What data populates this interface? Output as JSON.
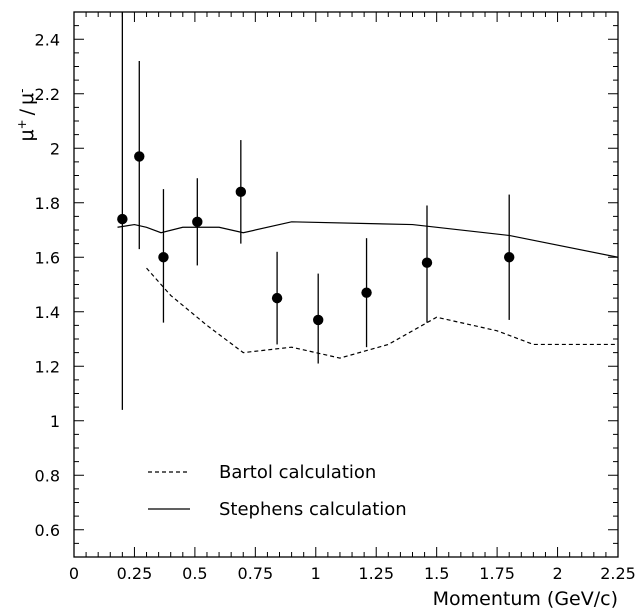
{
  "chart_data": {
    "type": "scatter",
    "title": "",
    "xlabel": "Momentum (GeV/c)",
    "ylabel_main": "μ",
    "ylabel_sup1": "+",
    "ylabel_sep": "/",
    "ylabel_sup2": "-",
    "xlim": [
      0,
      2.25
    ],
    "ylim": [
      0.5,
      2.5
    ],
    "xticks": [
      0,
      0.25,
      0.5,
      0.75,
      1,
      1.25,
      1.5,
      1.75,
      2,
      2.25
    ],
    "xtick_labels": [
      "0",
      "0.25",
      "0.5",
      "0.75",
      "1",
      "1.25",
      "1.5",
      "1.75",
      "2",
      "2.25"
    ],
    "yticks": [
      0.6,
      0.8,
      1,
      1.2,
      1.4,
      1.6,
      1.8,
      2,
      2.2,
      2.4
    ],
    "ytick_labels": [
      "0.6",
      "0.8",
      "1",
      "1.2",
      "1.4",
      "1.6",
      "1.8",
      "2",
      "2.2",
      "2.4"
    ],
    "grid": false,
    "legend_position": "bottom-left",
    "points": [
      {
        "x": 0.2,
        "y": 1.74,
        "lo": 1.04,
        "hi": 2.5
      },
      {
        "x": 0.27,
        "y": 1.97,
        "lo": 1.63,
        "hi": 2.32
      },
      {
        "x": 0.37,
        "y": 1.6,
        "lo": 1.36,
        "hi": 1.85
      },
      {
        "x": 0.51,
        "y": 1.73,
        "lo": 1.57,
        "hi": 1.89
      },
      {
        "x": 0.69,
        "y": 1.84,
        "lo": 1.65,
        "hi": 2.03
      },
      {
        "x": 0.84,
        "y": 1.45,
        "lo": 1.28,
        "hi": 1.62
      },
      {
        "x": 1.01,
        "y": 1.37,
        "lo": 1.21,
        "hi": 1.54
      },
      {
        "x": 1.21,
        "y": 1.47,
        "lo": 1.27,
        "hi": 1.67
      },
      {
        "x": 1.46,
        "y": 1.58,
        "lo": 1.36,
        "hi": 1.79
      },
      {
        "x": 1.8,
        "y": 1.6,
        "lo": 1.37,
        "hi": 1.83
      }
    ],
    "series": [
      {
        "name": "Bartol calculation",
        "style": "dashed",
        "x": [
          0.3,
          0.4,
          0.55,
          0.7,
          0.9,
          1.1,
          1.3,
          1.5,
          1.75,
          1.9,
          2.25
        ],
        "y": [
          1.56,
          1.46,
          1.35,
          1.25,
          1.27,
          1.23,
          1.28,
          1.38,
          1.33,
          1.28,
          1.28
        ]
      },
      {
        "name": "Stephens calculation",
        "style": "solid",
        "x": [
          0.18,
          0.25,
          0.3,
          0.36,
          0.45,
          0.6,
          0.7,
          0.9,
          1.4,
          1.8,
          2.25
        ],
        "y": [
          1.71,
          1.72,
          1.71,
          1.69,
          1.71,
          1.71,
          1.69,
          1.73,
          1.72,
          1.68,
          1.6
        ]
      }
    ],
    "colors": {
      "ink": "#000000",
      "background": "#ffffff"
    }
  }
}
